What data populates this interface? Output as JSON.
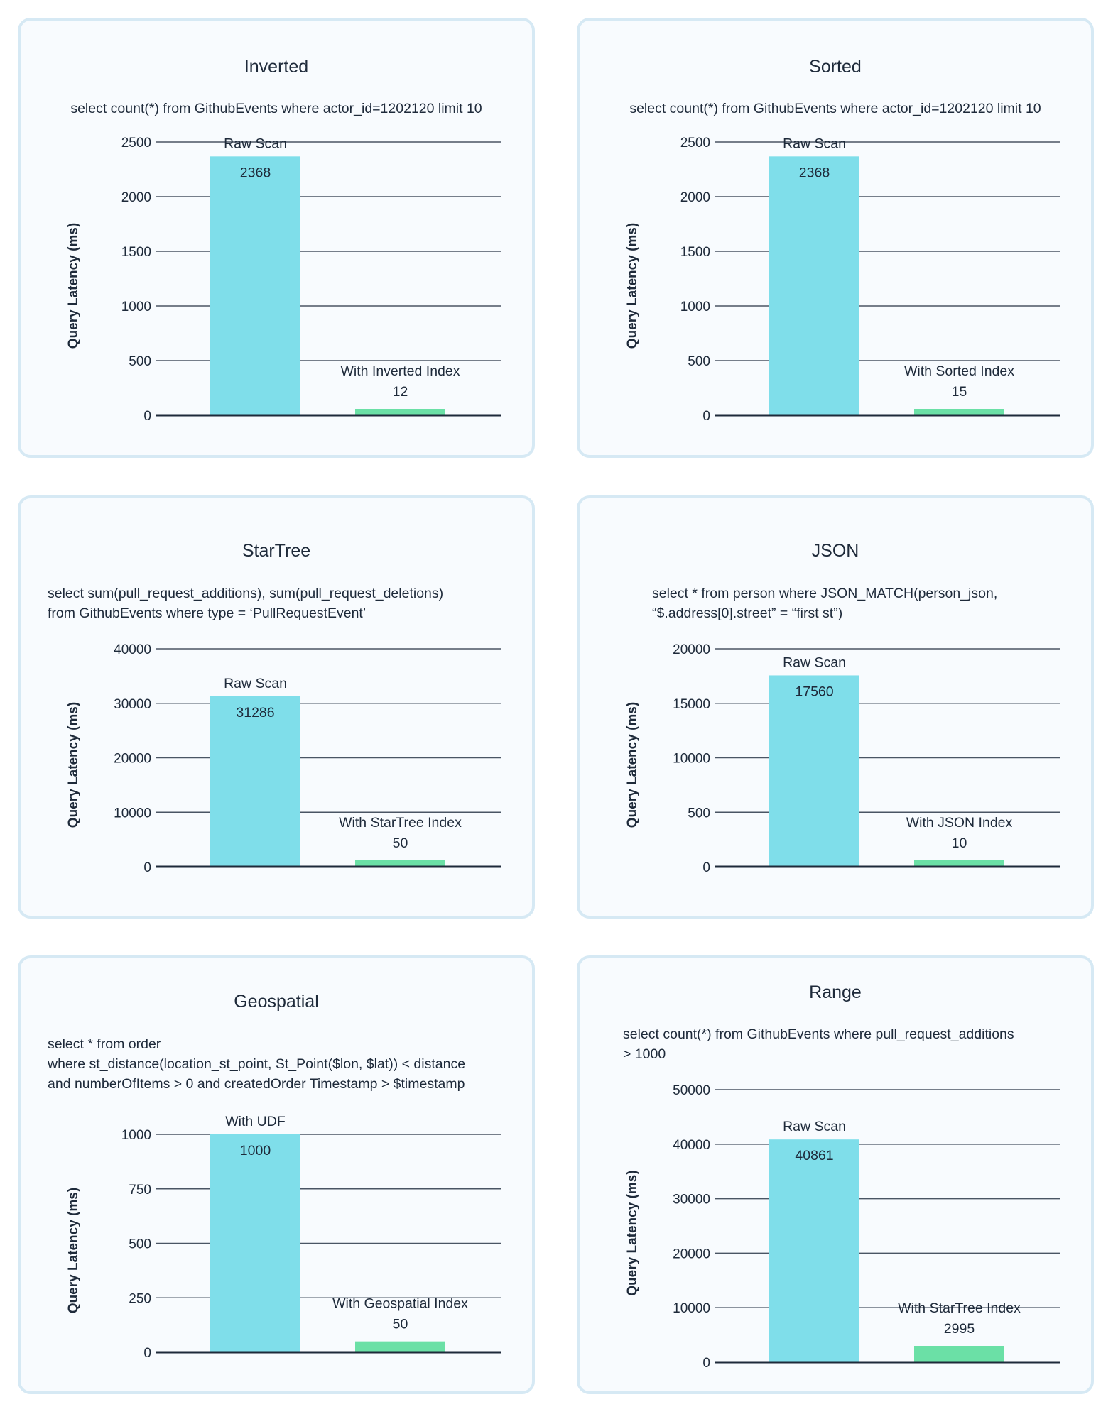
{
  "colors": {
    "raw_bar": "#7fdeea",
    "index_bar": "#6be0a6",
    "grid": "#4a5564",
    "text": "#1e2a3a",
    "panel_border": "#d6e9f4",
    "panel_bg": "#f8fbfe"
  },
  "chart_data": [
    {
      "type": "bar",
      "title": "Inverted",
      "subtitle": [
        "select count(*) from GithubEvents where actor_id=1202120 limit 10"
      ],
      "ylabel": "Query Latency (ms)",
      "ylim": [
        0,
        2500
      ],
      "yticks": [
        "0",
        "500",
        "1000",
        "1500",
        "2000",
        "2500"
      ],
      "grid": true,
      "categories": [
        "Raw Scan",
        "With Inverted Index"
      ],
      "values": [
        2368,
        12
      ]
    },
    {
      "type": "bar",
      "title": "Sorted",
      "subtitle": [
        "select count(*) from GithubEvents where actor_id=1202120 limit 10"
      ],
      "ylabel": "Query Latency (ms)",
      "ylim": [
        0,
        2500
      ],
      "yticks": [
        "0",
        "500",
        "1000",
        "1500",
        "2000",
        "2500"
      ],
      "grid": true,
      "categories": [
        "Raw Scan",
        "With Sorted Index"
      ],
      "values": [
        2368,
        15
      ]
    },
    {
      "type": "bar",
      "title": "StarTree",
      "subtitle": [
        "select sum(pull_request_additions), sum(pull_request_deletions)",
        "from GithubEvents where type = ‘PullRequestEvent’"
      ],
      "ylabel": "Query Latency (ms)",
      "ylim": [
        0,
        40000
      ],
      "yticks": [
        "0",
        "10000",
        "20000",
        "30000",
        "40000"
      ],
      "grid": true,
      "categories": [
        "Raw Scan",
        "With StarTree Index"
      ],
      "values": [
        31286,
        50
      ]
    },
    {
      "type": "bar",
      "title": "JSON",
      "subtitle": [
        "select * from person where JSON_MATCH(person_json,",
        "“$.address[0].street” = “first st”)"
      ],
      "ylabel": "Query Latency (ms)",
      "ylim": [
        0,
        20000
      ],
      "yticks": [
        "0",
        "500",
        "10000",
        "15000",
        "20000"
      ],
      "grid": true,
      "categories": [
        "Raw Scan",
        "With JSON Index"
      ],
      "values": [
        17560,
        10
      ]
    },
    {
      "type": "bar",
      "title": "Geospatial",
      "subtitle": [
        "select * from order",
        "where st_distance(location_st_point, St_Point($lon, $lat)) < distance",
        "and numberOfItems > 0 and createdOrder Timestamp > $timestamp"
      ],
      "ylabel": "Query Latency (ms)",
      "ylim": [
        0,
        1000
      ],
      "yticks": [
        "0",
        "250",
        "500",
        "750",
        "1000"
      ],
      "grid": true,
      "categories": [
        "With UDF",
        "With Geospatial Index"
      ],
      "values": [
        1000,
        50
      ]
    },
    {
      "type": "bar",
      "title": "Range",
      "subtitle": [
        "select count(*) from GithubEvents where pull_request_additions",
        "> 1000"
      ],
      "ylabel": "Query Latency (ms)",
      "ylim": [
        0,
        50000
      ],
      "yticks": [
        "0",
        "10000",
        "20000",
        "30000",
        "40000",
        "50000"
      ],
      "grid": true,
      "categories": [
        "Raw Scan",
        "With StarTree Index"
      ],
      "values": [
        40861,
        2995
      ]
    }
  ]
}
